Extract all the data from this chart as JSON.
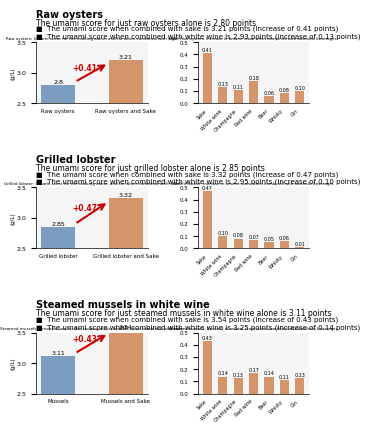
{
  "sections": [
    {
      "title": "Raw oysters",
      "desc1": "The umami score for just raw oysters alone is 2.80 points",
      "bullet1": "The umami score when combined with sake is 3.21 points (increase of 0.41 points)",
      "bullet2": "The umami score when combined with white wine is 2.93 points (increase of 0.13 points)",
      "bar_labels": [
        "Raw oysters",
        "Raw oysters and Sake"
      ],
      "bar_values": [
        2.8,
        3.21
      ],
      "bar_colors": [
        "#7B9EC0",
        "#D4956A"
      ],
      "bar_increase": "+0.41",
      "ylim": [
        2.5,
        3.5
      ],
      "yticks": [
        2.5,
        3,
        3.5
      ],
      "left_title": "Raw oysters: Umami score for the cooking alone, and for when combined with sake",
      "left_ylabel": "(g/L)",
      "right_title": "(g/L) Raw oysters: Increase in umami score when combined with alcoholic beverages",
      "right_categories": [
        "Sake",
        "White wine",
        "Champagne",
        "Red wine",
        "Beer",
        "Whisky",
        "Gin"
      ],
      "right_values": [
        0.41,
        0.13,
        0.11,
        0.18,
        0.06,
        0.08,
        0.1
      ],
      "right_ylim": [
        0,
        0.5
      ],
      "right_yticks": [
        0.0,
        0.1,
        0.2,
        0.3,
        0.4,
        0.5
      ]
    },
    {
      "title": "Grilled lobster",
      "desc1": "The umami score for just grilled lobster alone is 2.85 points",
      "bullet1": "The umami score when combined with sake is 3.32 points (increase of 0.47 points)",
      "bullet2": "The umami score when combined with white wine is 2.95 points (increase of 0.10 points)",
      "bar_labels": [
        "Grilled lobster",
        "Grilled lobster and Sake"
      ],
      "bar_values": [
        2.85,
        3.32
      ],
      "bar_colors": [
        "#7B9EC0",
        "#D4956A"
      ],
      "bar_increase": "+0.47",
      "ylim": [
        2.5,
        3.5
      ],
      "yticks": [
        2.5,
        3,
        3.5
      ],
      "left_title": "Grilled lobster: Umami score for the cooking alone, and for when combined with sake",
      "left_ylabel": "(g/L)",
      "right_title": "Grilled lobster: Increase in umami score when combined with alcoholic beverages",
      "right_categories": [
        "Sake",
        "White wine",
        "Champagne",
        "Red wine",
        "Beer",
        "Whisky",
        "Gin"
      ],
      "right_values": [
        0.47,
        0.1,
        0.08,
        0.07,
        0.05,
        0.06,
        0.01
      ],
      "right_ylim": [
        0,
        0.5
      ],
      "right_yticks": [
        0.0,
        0.1,
        0.2,
        0.3,
        0.4,
        0.5
      ]
    },
    {
      "title": "Steamed mussels in white wine",
      "desc1": "The umami score for just steamed mussels in white wine alone is 3.11 points",
      "bullet1": "The umami score when combined with sake is 3.54 points (increase of 0.43 points)",
      "bullet2": "The umami score when combined with white wine is 3.25 points (increase of 0.14 points)",
      "bar_labels": [
        "Mussels",
        "Mussels and Sake"
      ],
      "bar_values": [
        3.11,
        3.54
      ],
      "bar_colors": [
        "#7B9EC0",
        "#D4956A"
      ],
      "bar_increase": "+0.43",
      "ylim": [
        2.5,
        3.5
      ],
      "yticks": [
        2.5,
        3,
        3.5
      ],
      "left_title": "Steamed mussels: Umami score for the cooking alone, and for when combined with sake",
      "left_ylabel": "(g/L)",
      "right_title": "Steamed mussels: Increase in umami score when combined with alcoholic beverages",
      "right_categories": [
        "Sake",
        "White wine",
        "Champagne",
        "Red wine",
        "Beer",
        "Whisky",
        "Gin"
      ],
      "right_values": [
        0.43,
        0.14,
        0.13,
        0.17,
        0.14,
        0.11,
        0.13
      ],
      "right_ylim": [
        0,
        0.5
      ],
      "right_yticks": [
        0.0,
        0.1,
        0.2,
        0.3,
        0.4,
        0.5
      ]
    }
  ],
  "bg_color": "#FFFFFF",
  "text_color": "#000000",
  "title_bold": true,
  "arrow_color": "#CC0000",
  "increase_color": "#CC0000",
  "bar_color_right": "#D4956A",
  "subtitle_fontsize": 5.5,
  "bullet_fontsize": 5.0,
  "title_fontsize": 7.0
}
